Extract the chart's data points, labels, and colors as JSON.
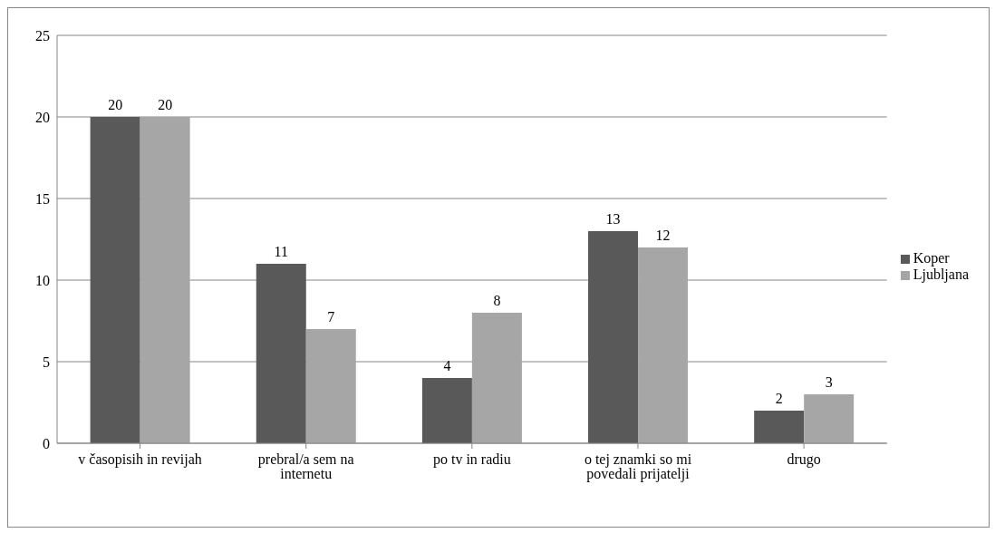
{
  "chart_data": {
    "type": "bar",
    "categories": [
      "v časopisih in revijah",
      "prebral/a sem na internetu",
      "po tv in radiu",
      "o tej znamki so mi povedali prijatelji",
      "drugo"
    ],
    "series": [
      {
        "name": "Koper",
        "color": "#595959",
        "values": [
          20,
          11,
          4,
          13,
          2
        ]
      },
      {
        "name": "Ljubljana",
        "color": "#a6a6a6",
        "values": [
          20,
          7,
          8,
          12,
          3
        ]
      }
    ],
    "ylim": [
      0,
      25
    ],
    "yticks": [
      0,
      5,
      10,
      15,
      20,
      25
    ],
    "grid": "y",
    "legend": "right",
    "data_labels": true
  }
}
